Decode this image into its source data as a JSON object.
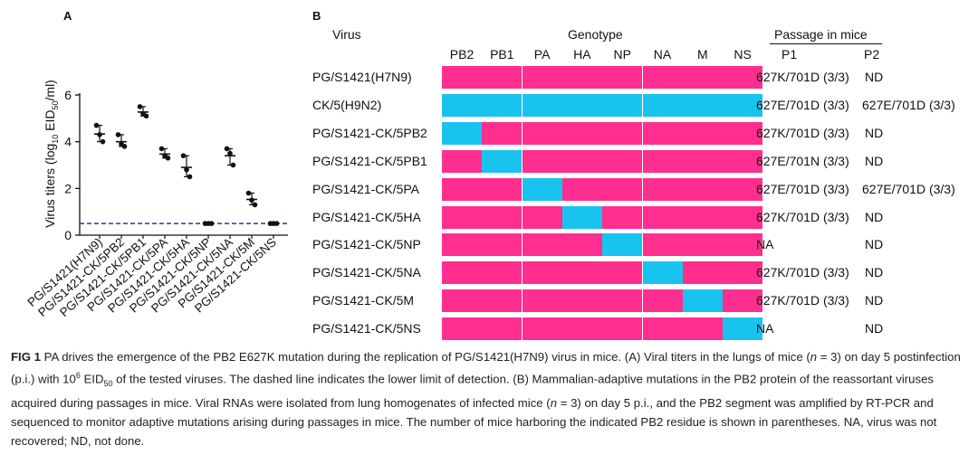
{
  "panel_a": {
    "label": "A",
    "chart_data": {
      "type": "scatter",
      "title": "",
      "ylabel": "Virus titers (log10 EID50/ml)",
      "ylabel_parts": {
        "pre": "Virus titers (log",
        "sub1": "10",
        "mid": " EID",
        "sub2": "50",
        "post": "/ml)"
      },
      "ylim": [
        0,
        6
      ],
      "yticks": [
        0,
        2,
        4,
        6
      ],
      "categories": [
        "PG/S1421(H7N9)",
        "PG/S1421-CK/5PB2",
        "PG/S1421-CK/5PB1",
        "PG/S1421-CK/5PA",
        "PG/S1421-CK/5HA",
        "PG/S1421-CK/5NP",
        "PG/S1421-CK/5NA",
        "PG/S1421-CK/5M",
        "PG/S1421-CK/5NS"
      ],
      "points": [
        [
          4.7,
          4.3,
          4.0
        ],
        [
          4.3,
          3.9,
          3.8
        ],
        [
          5.5,
          5.2,
          5.1
        ],
        [
          3.7,
          3.4,
          3.3
        ],
        [
          3.4,
          2.8,
          2.5
        ],
        [
          0.5,
          0.5,
          0.5
        ],
        [
          3.7,
          3.5,
          3.0
        ],
        [
          1.8,
          1.5,
          1.3
        ],
        [
          0.5,
          0.5,
          0.5
        ]
      ],
      "means": [
        4.33,
        4.0,
        5.27,
        3.47,
        2.9,
        0.5,
        3.4,
        1.53,
        0.5
      ],
      "detection_limit": 0.5,
      "colors": {
        "point": "#111111",
        "limit_line": "#1f3d99"
      }
    }
  },
  "panel_b": {
    "label": "B",
    "virus_header": "Virus",
    "genotype_header": "Genotype",
    "passage_header": "Passage in mice",
    "p1_header": "P1",
    "p2_header": "P2",
    "segments": [
      "PB2",
      "PB1",
      "PA",
      "HA",
      "NP",
      "NA",
      "M",
      "NS"
    ],
    "colors": {
      "h7n9": "#ff2e8f",
      "h9n2": "#19c3f0"
    },
    "rows": [
      {
        "virus": "PG/S1421(H7N9)",
        "genotype": [
          "p",
          "p",
          "p",
          "p",
          "p",
          "p",
          "p",
          "p"
        ],
        "p1": "627K/701D (3/3)",
        "p2": "ND"
      },
      {
        "virus": "CK/5(H9N2)",
        "genotype": [
          "c",
          "c",
          "c",
          "c",
          "c",
          "c",
          "c",
          "c"
        ],
        "p1": "627E/701D (3/3)",
        "p2": "627E/701D (3/3)"
      },
      {
        "virus": "PG/S1421-CK/5PB2",
        "genotype": [
          "c",
          "p",
          "p",
          "p",
          "p",
          "p",
          "p",
          "p"
        ],
        "p1": "627K/701D (3/3)",
        "p2": "ND"
      },
      {
        "virus": "PG/S1421-CK/5PB1",
        "genotype": [
          "p",
          "c",
          "p",
          "p",
          "p",
          "p",
          "p",
          "p"
        ],
        "p1": "627E/701N (3/3)",
        "p2": "ND"
      },
      {
        "virus": "PG/S1421-CK/5PA",
        "genotype": [
          "p",
          "p",
          "c",
          "p",
          "p",
          "p",
          "p",
          "p"
        ],
        "p1": "627E/701D (3/3)",
        "p2": "627E/701D (3/3)"
      },
      {
        "virus": "PG/S1421-CK/5HA",
        "genotype": [
          "p",
          "p",
          "p",
          "c",
          "p",
          "p",
          "p",
          "p"
        ],
        "p1": "627K/701D (3/3)",
        "p2": "ND"
      },
      {
        "virus": "PG/S1421-CK/5NP",
        "genotype": [
          "p",
          "p",
          "p",
          "p",
          "c",
          "p",
          "p",
          "p"
        ],
        "p1": "NA",
        "p2": "ND"
      },
      {
        "virus": "PG/S1421-CK/5NA",
        "genotype": [
          "p",
          "p",
          "p",
          "p",
          "p",
          "c",
          "p",
          "p"
        ],
        "p1": "627K/701D (3/3)",
        "p2": "ND"
      },
      {
        "virus": "PG/S1421-CK/5M",
        "genotype": [
          "p",
          "p",
          "p",
          "p",
          "p",
          "p",
          "c",
          "p"
        ],
        "p1": "627K/701D (3/3)",
        "p2": "ND"
      },
      {
        "virus": "PG/S1421-CK/5NS",
        "genotype": [
          "p",
          "p",
          "p",
          "p",
          "p",
          "p",
          "p",
          "c"
        ],
        "p1": "NA",
        "p2": "ND"
      }
    ]
  },
  "caption": {
    "fig_label": "FIG 1",
    "text_1": "  PA drives the emergence of the PB2 E627K mutation during the replication of PG/S1421(H7N9) virus in mice. (A) Viral titers in the lungs of mice (",
    "n_1": "n",
    "text_2": " = 3) on day 5 postinfection (p.i.) with 10",
    "sup_1": "6",
    "text_3": " EID",
    "sub_1": "50",
    "text_4": " of the tested viruses. The dashed line indicates the lower limit of detection. (B) Mammalian-adaptive mutations in the PB2 protein of the reassortant viruses acquired during passages in mice. Viral RNAs were isolated from lung homogenates of infected mice (",
    "n_2": "n",
    "text_5": " = 3) on day 5 p.i., and the PB2 segment was amplified by RT-PCR and sequenced to monitor adaptive mutations arising during passages in mice. The number of mice harboring the indicated PB2 residue is shown in parentheses. NA, virus was not recovered; ND, not done."
  }
}
